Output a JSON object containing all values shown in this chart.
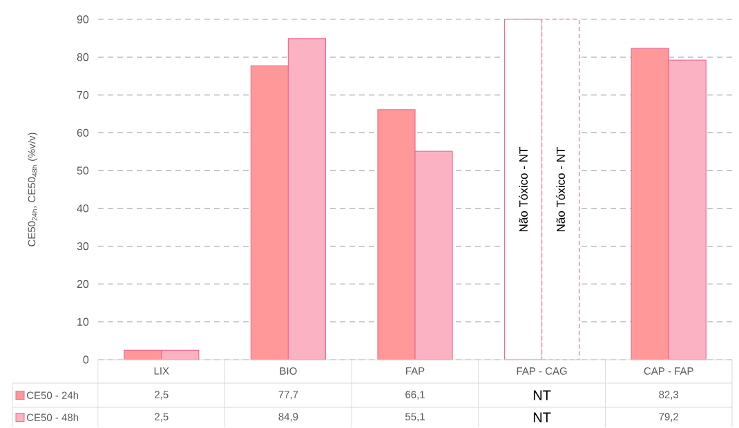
{
  "chart_data": {
    "type": "bar",
    "ylabel": "CE50$_{24h}$, CE50$_{48h}$ (%v/v)",
    "categories": [
      "LIX",
      "BIO",
      "FAP",
      "FAP - CAG",
      "CAP - FAP"
    ],
    "series": [
      {
        "name": "CE50 - 24h",
        "color": "#ff9999",
        "colors": [
          "#ff9999",
          "#ff9999",
          "#ff9999",
          "#ffffff",
          "#ff9999"
        ],
        "values": [
          2.5,
          77.7,
          66.1,
          90,
          82.3
        ],
        "value_labels": [
          "2,5",
          "77,7",
          "66,1",
          "NT",
          "82,3"
        ]
      },
      {
        "name": "CE50 - 48h",
        "color": "#fbb3c3",
        "colors": [
          "#fbb3c3",
          "#fbb3c3",
          "#fbb3c3",
          "#ffffff",
          "#fbb3c3"
        ],
        "values": [
          2.5,
          84.9,
          55.1,
          90,
          79.2
        ],
        "value_labels": [
          "2,5",
          "84,9",
          "55,1",
          "NT",
          "79,2"
        ]
      }
    ],
    "ylim": [
      0,
      90
    ],
    "yticks": [
      0,
      10,
      20,
      30,
      40,
      50,
      60,
      70,
      80,
      90
    ],
    "grid": "y",
    "legend": "bottom",
    "annotations": [
      {
        "text": "Não Tóxico - NT",
        "x": "FAP - CAG",
        "y": 45
      },
      {
        "text": "Não Tóxico - NT",
        "x": "FAP - CAG",
        "y": 45
      }
    ]
  }
}
